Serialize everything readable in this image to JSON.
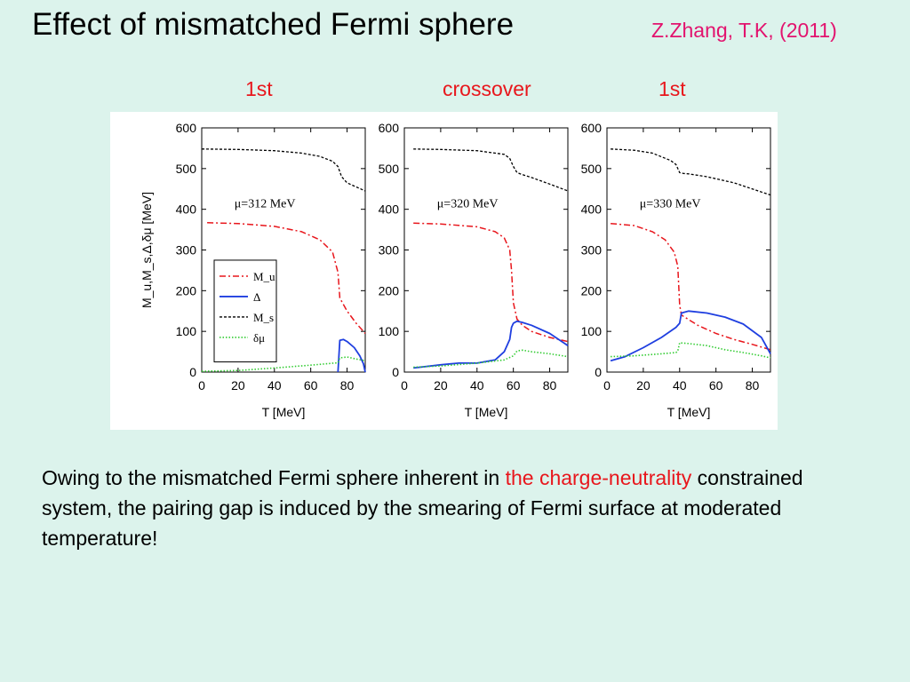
{
  "slide": {
    "title": "Effect of mismatched Fermi sphere",
    "citation": "Z.Zhang, T.K, (2011)",
    "panel_tags": [
      "1st",
      "crossover",
      "1st"
    ],
    "body_text_before": "Owing to the mismatched Fermi sphere inherent in ",
    "body_text_highlight": "the charge-neutrality",
    "body_text_after": " constrained system, the pairing gap is induced by the smearing of Fermi surface at moderated temperature!"
  },
  "colors": {
    "background": "#dcf3ec",
    "title": "#000000",
    "citation": "#e2136e",
    "highlight": "#e8161c",
    "Mu": "#e8161c",
    "Delta": "#1f3fe0",
    "Ms": "#000000",
    "dmu": "#33cc33"
  },
  "chart_data": [
    {
      "type": "line",
      "annotation": "μ=312 MeV",
      "xlabel": "T [MeV]",
      "ylabel": "M_u,M_s,Δ,δμ [MeV]",
      "xlim": [
        0,
        90
      ],
      "ylim": [
        0,
        600
      ],
      "xticks": [
        0,
        20,
        40,
        60,
        80
      ],
      "yticks": [
        0,
        100,
        200,
        300,
        400,
        500,
        600
      ],
      "legend": [
        "M_u",
        "Δ",
        "M_s",
        "δμ"
      ],
      "legend_position": "lower-left",
      "series": [
        {
          "name": "M_u",
          "style": "dash-dot",
          "x": [
            3,
            20,
            40,
            55,
            65,
            72,
            75,
            76,
            80,
            85,
            90
          ],
          "y": [
            367,
            365,
            358,
            345,
            325,
            295,
            245,
            182,
            150,
            120,
            95
          ]
        },
        {
          "name": "Δ",
          "style": "solid",
          "x": [
            75,
            76,
            78,
            80,
            84,
            87,
            89,
            90
          ],
          "y": [
            0,
            78,
            80,
            75,
            60,
            40,
            20,
            0
          ]
        },
        {
          "name": "M_s",
          "style": "dashed",
          "x": [
            0,
            20,
            40,
            55,
            65,
            72,
            75,
            77,
            80,
            85,
            90
          ],
          "y": [
            548,
            547,
            544,
            538,
            530,
            518,
            505,
            480,
            465,
            455,
            445
          ]
        },
        {
          "name": "δμ",
          "style": "dotted",
          "x": [
            0,
            20,
            40,
            60,
            75,
            76,
            80,
            85,
            90
          ],
          "y": [
            2,
            4,
            10,
            17,
            23,
            35,
            37,
            32,
            28
          ]
        }
      ]
    },
    {
      "type": "line",
      "annotation": "μ=320 MeV",
      "xlabel": "T [MeV]",
      "xlim": [
        0,
        90
      ],
      "ylim": [
        0,
        600
      ],
      "xticks": [
        0,
        20,
        40,
        60,
        80
      ],
      "yticks": [
        0,
        100,
        200,
        300,
        400,
        500,
        600
      ],
      "series": [
        {
          "name": "M_u",
          "style": "dash-dot",
          "x": [
            5,
            20,
            40,
            50,
            55,
            58,
            59,
            60,
            62,
            65,
            70,
            80,
            90
          ],
          "y": [
            366,
            364,
            357,
            345,
            330,
            300,
            250,
            170,
            130,
            115,
            100,
            85,
            75
          ]
        },
        {
          "name": "Δ",
          "style": "solid",
          "x": [
            5,
            20,
            30,
            40,
            50,
            55,
            58,
            59,
            60,
            62,
            65,
            70,
            80,
            90
          ],
          "y": [
            10,
            18,
            22,
            22,
            30,
            50,
            80,
            110,
            120,
            125,
            122,
            115,
            95,
            65
          ]
        },
        {
          "name": "M_s",
          "style": "dashed",
          "x": [
            5,
            20,
            40,
            55,
            58,
            60,
            62,
            65,
            70,
            80,
            90
          ],
          "y": [
            548,
            547,
            544,
            535,
            525,
            505,
            490,
            485,
            478,
            462,
            445
          ]
        },
        {
          "name": "δμ",
          "style": "dotted",
          "x": [
            5,
            20,
            40,
            55,
            60,
            62,
            65,
            70,
            80,
            90
          ],
          "y": [
            12,
            15,
            22,
            30,
            40,
            52,
            54,
            50,
            45,
            38
          ]
        }
      ]
    },
    {
      "type": "line",
      "annotation": "μ=330 MeV",
      "xlabel": "T [MeV]",
      "xlim": [
        0,
        90
      ],
      "ylim": [
        0,
        600
      ],
      "xticks": [
        0,
        20,
        40,
        60,
        80
      ],
      "yticks": [
        0,
        100,
        200,
        300,
        400,
        500,
        600
      ],
      "series": [
        {
          "name": "M_u",
          "style": "dash-dot",
          "x": [
            2,
            15,
            25,
            32,
            37,
            39,
            40,
            41,
            50,
            60,
            70,
            80,
            90
          ],
          "y": [
            365,
            360,
            345,
            325,
            295,
            260,
            165,
            140,
            115,
            95,
            80,
            68,
            55
          ]
        },
        {
          "name": "Δ",
          "style": "solid",
          "x": [
            2,
            10,
            20,
            30,
            38,
            40,
            41,
            45,
            55,
            65,
            75,
            85,
            90
          ],
          "y": [
            28,
            38,
            60,
            85,
            110,
            120,
            145,
            150,
            145,
            135,
            118,
            85,
            45
          ]
        },
        {
          "name": "M_s",
          "style": "dashed",
          "x": [
            2,
            15,
            25,
            35,
            38,
            40,
            42,
            45,
            55,
            70,
            80,
            90
          ],
          "y": [
            548,
            545,
            538,
            520,
            510,
            490,
            488,
            487,
            480,
            465,
            450,
            435
          ]
        },
        {
          "name": "δμ",
          "style": "dotted",
          "x": [
            2,
            15,
            30,
            38,
            39,
            40,
            45,
            55,
            65,
            75,
            85,
            90
          ],
          "y": [
            38,
            40,
            45,
            48,
            52,
            72,
            70,
            65,
            55,
            48,
            40,
            35
          ]
        }
      ]
    }
  ]
}
